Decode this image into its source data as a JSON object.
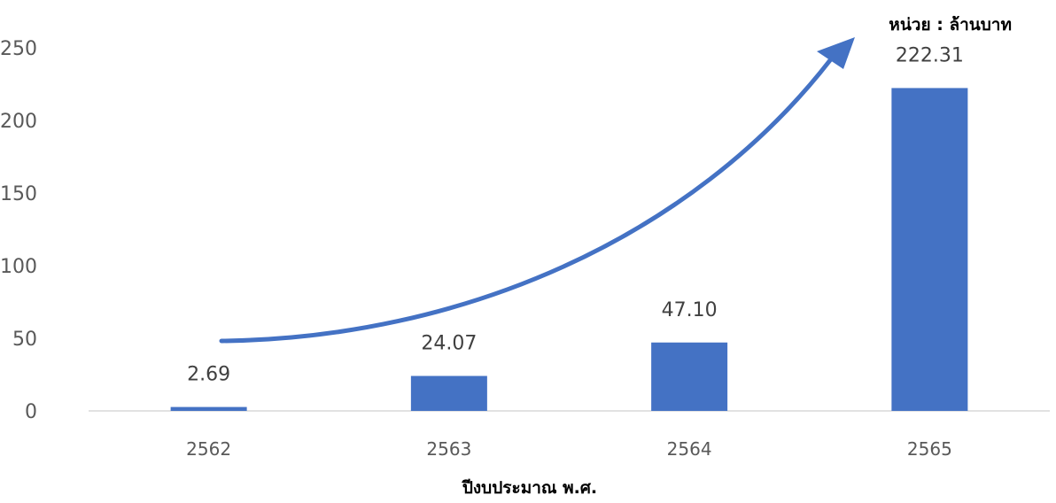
{
  "chart_data": {
    "type": "bar",
    "categories": [
      "2562",
      "2563",
      "2564",
      "2565"
    ],
    "values": [
      2.69,
      24.07,
      47.1,
      222.31
    ],
    "data_labels": [
      "2.69",
      "24.07",
      "47.10",
      "222.31"
    ],
    "title": "",
    "xlabel": "ปีงบประมาณ พ.ศ.",
    "ylabel": "",
    "unit_label": "หน่วย : ล้านบาท",
    "ylim": [
      0,
      250
    ],
    "yticks": [
      0,
      50,
      100,
      150,
      200,
      250
    ],
    "grid": false,
    "legend": "none",
    "bar_color": "#4472C4",
    "trend_arrow_color": "#4472C4"
  }
}
